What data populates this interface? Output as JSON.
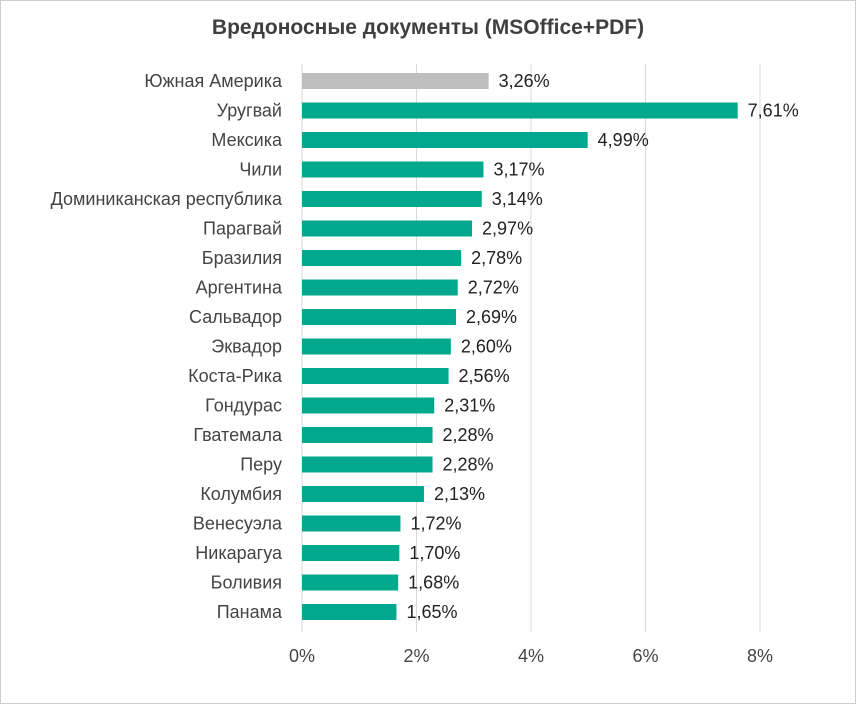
{
  "chart_data": {
    "type": "bar",
    "orientation": "horizontal",
    "title": "Вредоносные документы (MSOffice+PDF)",
    "categories": [
      "Южная Америка",
      "Уругвай",
      "Мексика",
      "Чили",
      "Доминиканская республика",
      "Парагвай",
      "Бразилия",
      "Аргентина",
      "Сальвадор",
      "Эквадор",
      "Коста-Рика",
      "Гондурас",
      "Гватемала",
      "Перу",
      "Колумбия",
      "Венесуэла",
      "Никарагуа",
      "Боливия",
      "Панама"
    ],
    "values": [
      3.26,
      7.61,
      4.99,
      3.17,
      3.14,
      2.97,
      2.78,
      2.72,
      2.69,
      2.6,
      2.56,
      2.31,
      2.28,
      2.28,
      2.13,
      1.72,
      1.7,
      1.68,
      1.65
    ],
    "value_labels": [
      "3,26%",
      "7,61%",
      "4,99%",
      "3,17%",
      "3,14%",
      "2,97%",
      "2,78%",
      "2,72%",
      "2,69%",
      "2,60%",
      "2,56%",
      "2,31%",
      "2,28%",
      "2,28%",
      "2,13%",
      "1,72%",
      "1,70%",
      "1,68%",
      "1,65%"
    ],
    "x_ticks": [
      0,
      2,
      4,
      6,
      8
    ],
    "x_tick_labels": [
      "0%",
      "2%",
      "4%",
      "6%",
      "8%"
    ],
    "xlim": [
      0,
      8
    ],
    "grid": true,
    "colors": {
      "highlight": "#bfbfbf",
      "bar": "#00a88e"
    }
  }
}
